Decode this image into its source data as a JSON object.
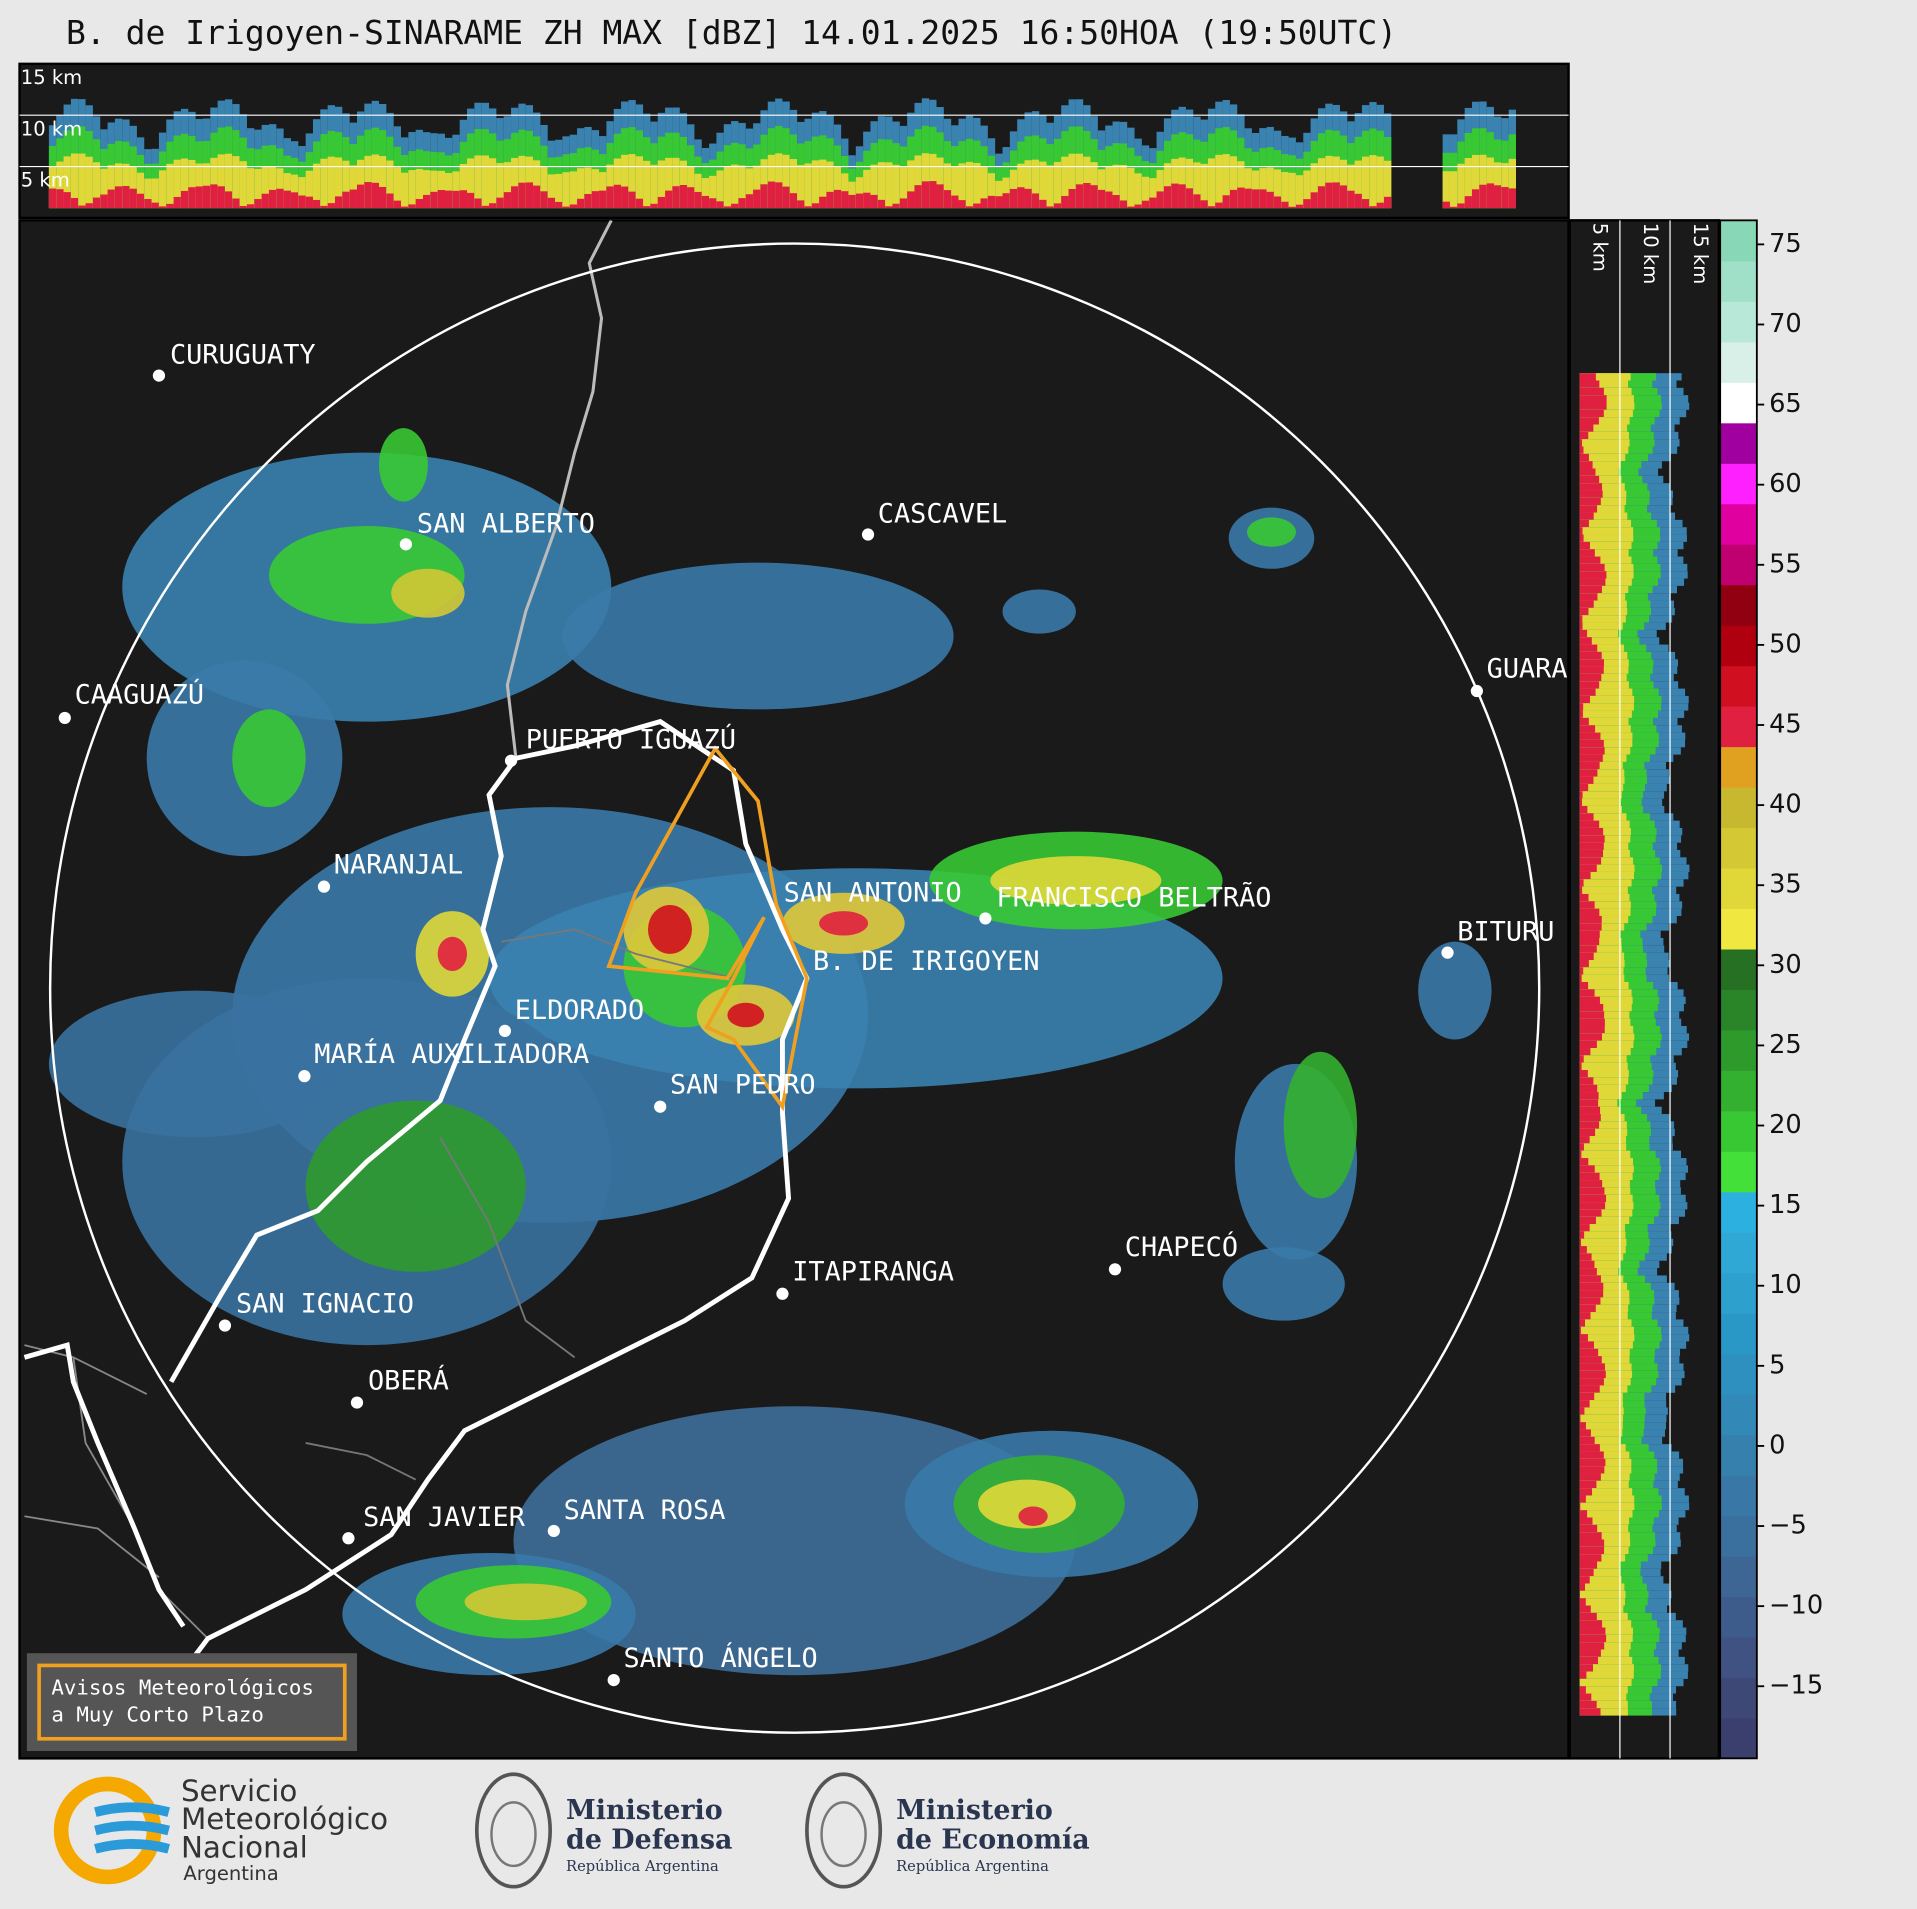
{
  "title": "B. de Irigoyen-SINARAME ZH MAX [dBZ] 14.01.2025 16:50HOA (19:50UTC)",
  "cross_section": {
    "height_labels": [
      "15 km",
      "10 km",
      "5 km"
    ]
  },
  "map": {
    "cities": [
      "CURUGUATY",
      "SAN ALBERTO",
      "CASCAVEL",
      "CAAGUAZÚ",
      "GUARA",
      "PUERTO IGUAZÚ",
      "NARANJAL",
      "SAN ANTONIO",
      "FRANCISCO BELTRÃO",
      "BITURU",
      "B. DE IRIGOYEN",
      "ELDORADO",
      "MARÍA AUXILIADORA",
      "SAN PEDRO",
      "ITAPIRANGA",
      "CHAPECÓ",
      "SAN IGNACIO",
      "OBERÁ",
      "SAN JAVIER",
      "SANTA ROSA",
      "SANTO ÁNGELO"
    ],
    "box": [
      "Avisos Meteorológicos",
      "a Muy Corto Plazo"
    ]
  },
  "colorbar": {
    "lim": [
      -19.5,
      76.5
    ],
    "ticks": [
      75,
      70,
      65,
      60,
      55,
      50,
      45,
      40,
      35,
      30,
      25,
      20,
      15,
      10,
      5,
      0,
      {
        "value": -5,
        "label": "−5"
      },
      {
        "value": -10,
        "label": "−10"
      },
      {
        "value": -15,
        "label": "−15"
      }
    ],
    "colors": [
      "#3b3f6e",
      "#3e4877",
      "#3f5281",
      "#3e5c8b",
      "#3d6694",
      "#3a709e",
      "#3978a6",
      "#3680ae",
      "#3288b6",
      "#2d90be",
      "#2a98c6",
      "#2ea0ce",
      "#30a8d6",
      "#2cb0e0",
      "#44e03a",
      "#38c834",
      "#34b030",
      "#2f9a2c",
      "#2a8428",
      "#267024",
      "#f0e840",
      "#e0d838",
      "#d4c834",
      "#c8b830",
      "#e0a020",
      "#e02040",
      "#d01020",
      "#b00010",
      "#900010",
      "#c00070",
      "#e000a0",
      "#ff20ff",
      "#a000a0",
      "#ffffff",
      "#d8f0e8",
      "#b8e8d8",
      "#a0e0c8",
      "#88d8b8"
    ]
  },
  "footer": {
    "smn": [
      "Servicio",
      "Meteorológico",
      "Nacional",
      "Argentina"
    ],
    "ministries": [
      {
        "name": [
          "Ministerio",
          "de Defensa"
        ],
        "country": "República Argentina"
      },
      {
        "name": [
          "Ministerio",
          "de Economía"
        ],
        "country": "República Argentina"
      }
    ]
  }
}
